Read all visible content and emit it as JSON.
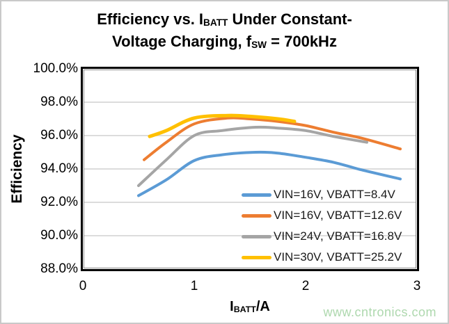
{
  "title": {
    "line1": {
      "pre": "Efficiency vs. I",
      "sub": "BATT",
      "post": " Under Constant-"
    },
    "line2": {
      "pre": "Voltage Charging, f",
      "sub": "SW",
      "post": " = 700kHz"
    }
  },
  "y_axis": {
    "label": "Efficiency"
  },
  "x_axis": {
    "label_pre": "I",
    "label_sub": "BATT",
    "label_post": "/A"
  },
  "watermark": {
    "text": "www.cntronics.com",
    "color": "#aed8ae"
  },
  "chart_data": {
    "type": "line",
    "title": "Efficiency vs. IBATT Under Constant-Voltage Charging, fSW = 700kHz",
    "xlabel": "IBATT/A",
    "ylabel": "Efficiency",
    "xlim": [
      0,
      3
    ],
    "ylim": [
      88,
      100
    ],
    "x_ticks": [
      {
        "value": 0,
        "label": "0"
      },
      {
        "value": 1,
        "label": "1"
      },
      {
        "value": 2,
        "label": "2"
      },
      {
        "value": 3,
        "label": "3"
      }
    ],
    "y_ticks": [
      {
        "value": 100,
        "label": "100.0%"
      },
      {
        "value": 98,
        "label": "98.0%"
      },
      {
        "value": 96,
        "label": "96.0%"
      },
      {
        "value": 94,
        "label": "94.0%"
      },
      {
        "value": 92,
        "label": "92.0%"
      },
      {
        "value": 90,
        "label": "90.0%"
      },
      {
        "value": 88,
        "label": "88.0%"
      }
    ],
    "grid": true,
    "legend_position": "inside-bottom-right",
    "series": [
      {
        "name": "VIN=16V, VBATT=8.4V",
        "color": "#5B9BD5",
        "stroke_width": 4,
        "points": [
          [
            0.5,
            92.4
          ],
          [
            0.75,
            93.35
          ],
          [
            1.0,
            94.5
          ],
          [
            1.25,
            94.85
          ],
          [
            1.55,
            95.0
          ],
          [
            1.75,
            94.95
          ],
          [
            2.0,
            94.7
          ],
          [
            2.25,
            94.4
          ],
          [
            2.5,
            93.95
          ],
          [
            2.85,
            93.4
          ]
        ]
      },
      {
        "name": "VIN=16V, VBATT=12.6V",
        "color": "#ED7D31",
        "stroke_width": 4,
        "points": [
          [
            0.55,
            94.55
          ],
          [
            0.75,
            95.6
          ],
          [
            1.0,
            96.7
          ],
          [
            1.3,
            97.05
          ],
          [
            1.5,
            97.0
          ],
          [
            1.75,
            96.85
          ],
          [
            2.0,
            96.6
          ],
          [
            2.25,
            96.2
          ],
          [
            2.5,
            95.85
          ],
          [
            2.85,
            95.2
          ]
        ]
      },
      {
        "name": "VIN=24V, VBATT=16.8V",
        "color": "#A5A5A5",
        "stroke_width": 4,
        "points": [
          [
            0.5,
            93.0
          ],
          [
            0.75,
            94.55
          ],
          [
            1.0,
            96.0
          ],
          [
            1.25,
            96.3
          ],
          [
            1.55,
            96.5
          ],
          [
            1.75,
            96.45
          ],
          [
            2.0,
            96.3
          ],
          [
            2.25,
            95.95
          ],
          [
            2.55,
            95.6
          ]
        ]
      },
      {
        "name": "VIN=30V, VBATT=25.2V",
        "color": "#FFC000",
        "stroke_width": 5,
        "points": [
          [
            0.6,
            95.95
          ],
          [
            0.75,
            96.3
          ],
          [
            1.0,
            97.05
          ],
          [
            1.3,
            97.2
          ],
          [
            1.5,
            97.15
          ],
          [
            1.75,
            97.0
          ],
          [
            1.9,
            96.85
          ]
        ]
      }
    ]
  }
}
